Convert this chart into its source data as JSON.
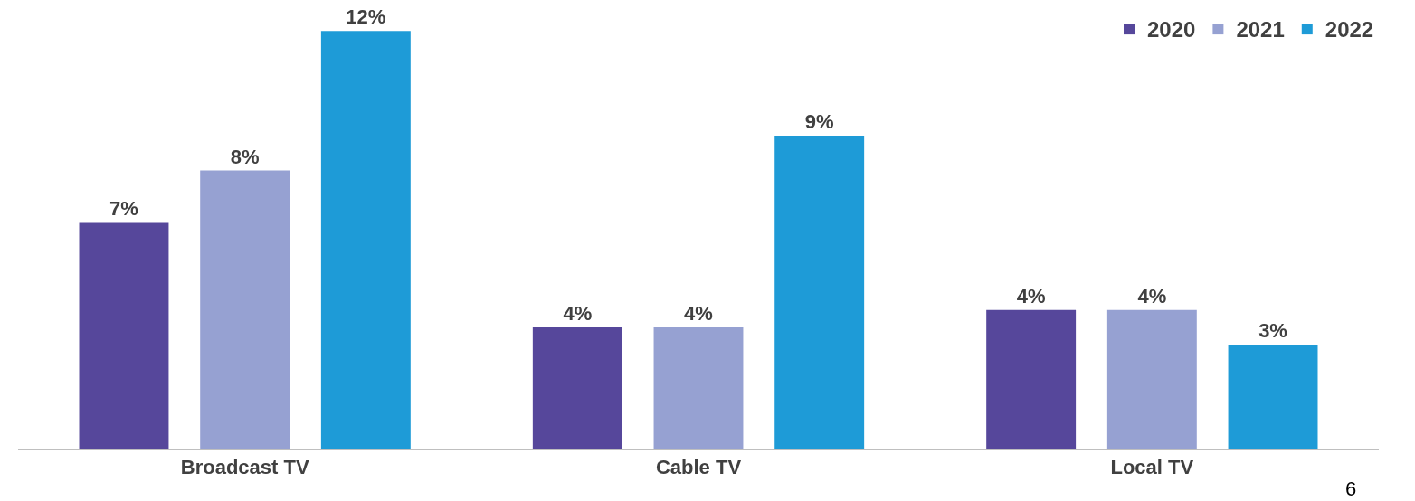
{
  "chart_data": {
    "type": "bar",
    "categories": [
      "Broadcast TV",
      "Cable TV",
      "Local TV"
    ],
    "series": [
      {
        "name": "2020",
        "color": "#56479b",
        "values": [
          6.5,
          3.5,
          4
        ],
        "value_labels": [
          "7%",
          "4%",
          "4%"
        ]
      },
      {
        "name": "2021",
        "color": "#96a1d2",
        "values": [
          8,
          3.5,
          4
        ],
        "value_labels": [
          "8%",
          "4%",
          "4%"
        ]
      },
      {
        "name": "2022",
        "color": "#1e9bd7",
        "values": [
          12,
          9,
          3
        ],
        "value_labels": [
          "12%",
          "9%",
          "3%"
        ]
      }
    ],
    "legend": "top right",
    "grid": false,
    "annotations": [
      "6"
    ]
  }
}
